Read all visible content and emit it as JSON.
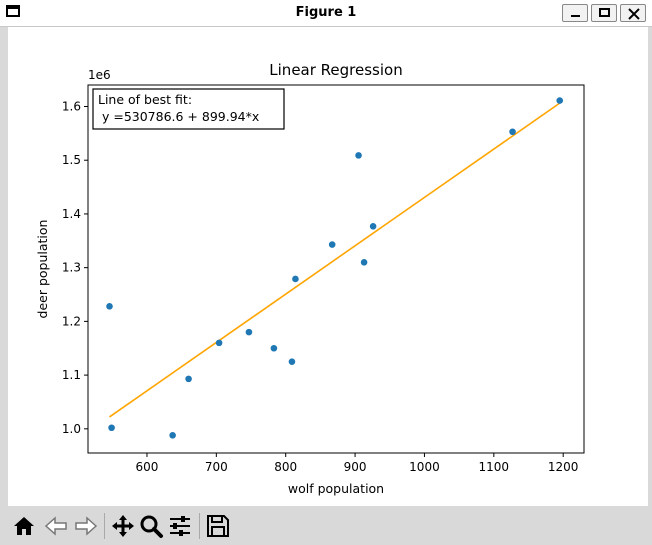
{
  "window": {
    "title": "Figure 1"
  },
  "toolbar": {
    "buttons": [
      {
        "name": "home-icon"
      },
      {
        "name": "back-icon"
      },
      {
        "name": "forward-icon"
      },
      {
        "name": "pan-icon"
      },
      {
        "name": "zoom-icon"
      },
      {
        "name": "configure-subplots-icon"
      },
      {
        "name": "save-icon"
      }
    ]
  },
  "colors": {
    "points": "#1f77b4",
    "fit_line": "#ffa500"
  },
  "chart_data": {
    "type": "scatter",
    "title": "Linear Regression",
    "xlabel": "wolf population",
    "ylabel": "deer population",
    "y_offset_label": "1e6",
    "xlim": [
      515,
      1230
    ],
    "ylim": [
      0.955,
      1.64
    ],
    "xticks": [
      600,
      700,
      800,
      900,
      1000,
      1100,
      1200
    ],
    "xtick_labels": [
      "600",
      "700",
      "800",
      "900",
      "1000",
      "1100",
      "1200"
    ],
    "yticks": [
      1.0,
      1.1,
      1.2,
      1.3,
      1.4,
      1.5,
      1.6
    ],
    "ytick_labels": [
      "1.0",
      "1.1",
      "1.2",
      "1.3",
      "1.4",
      "1.5",
      "1.6"
    ],
    "points": [
      {
        "x": 546,
        "y": 1.228
      },
      {
        "x": 549,
        "y": 1.002
      },
      {
        "x": 637,
        "y": 0.988
      },
      {
        "x": 660,
        "y": 1.093
      },
      {
        "x": 704,
        "y": 1.16
      },
      {
        "x": 747,
        "y": 1.18
      },
      {
        "x": 783,
        "y": 1.15
      },
      {
        "x": 809,
        "y": 1.125
      },
      {
        "x": 814,
        "y": 1.279
      },
      {
        "x": 867,
        "y": 1.343
      },
      {
        "x": 905,
        "y": 1.509
      },
      {
        "x": 913,
        "y": 1.31
      },
      {
        "x": 926,
        "y": 1.377
      },
      {
        "x": 1127,
        "y": 1.553
      },
      {
        "x": 1195,
        "y": 1.611
      }
    ],
    "fit": {
      "intercept": 530786.6,
      "slope": 899.94,
      "x_range": [
        546,
        1195
      ]
    },
    "annotation": {
      "line1": "Line of best fit:",
      "line2": " y =530786.6 + 899.94*x"
    }
  }
}
